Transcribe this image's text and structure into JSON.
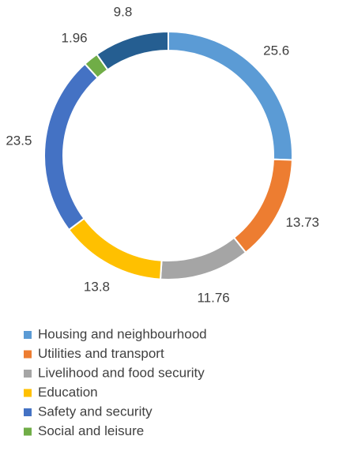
{
  "chart_data": {
    "type": "donut",
    "categories": [
      "Housing and neighbourhood",
      "Utilities and transport",
      "Livelihood and food security",
      "Education",
      "Safety and security",
      "Social and leisure",
      null
    ],
    "values": [
      25.6,
      13.73,
      11.76,
      13.8,
      23.5,
      1.96,
      9.8
    ],
    "colors": [
      "#5B9BD5",
      "#ED7D31",
      "#A5A5A5",
      "#FFC000",
      "#4472C4",
      "#70AD47",
      "#255E91"
    ],
    "legend": "bottom"
  }
}
